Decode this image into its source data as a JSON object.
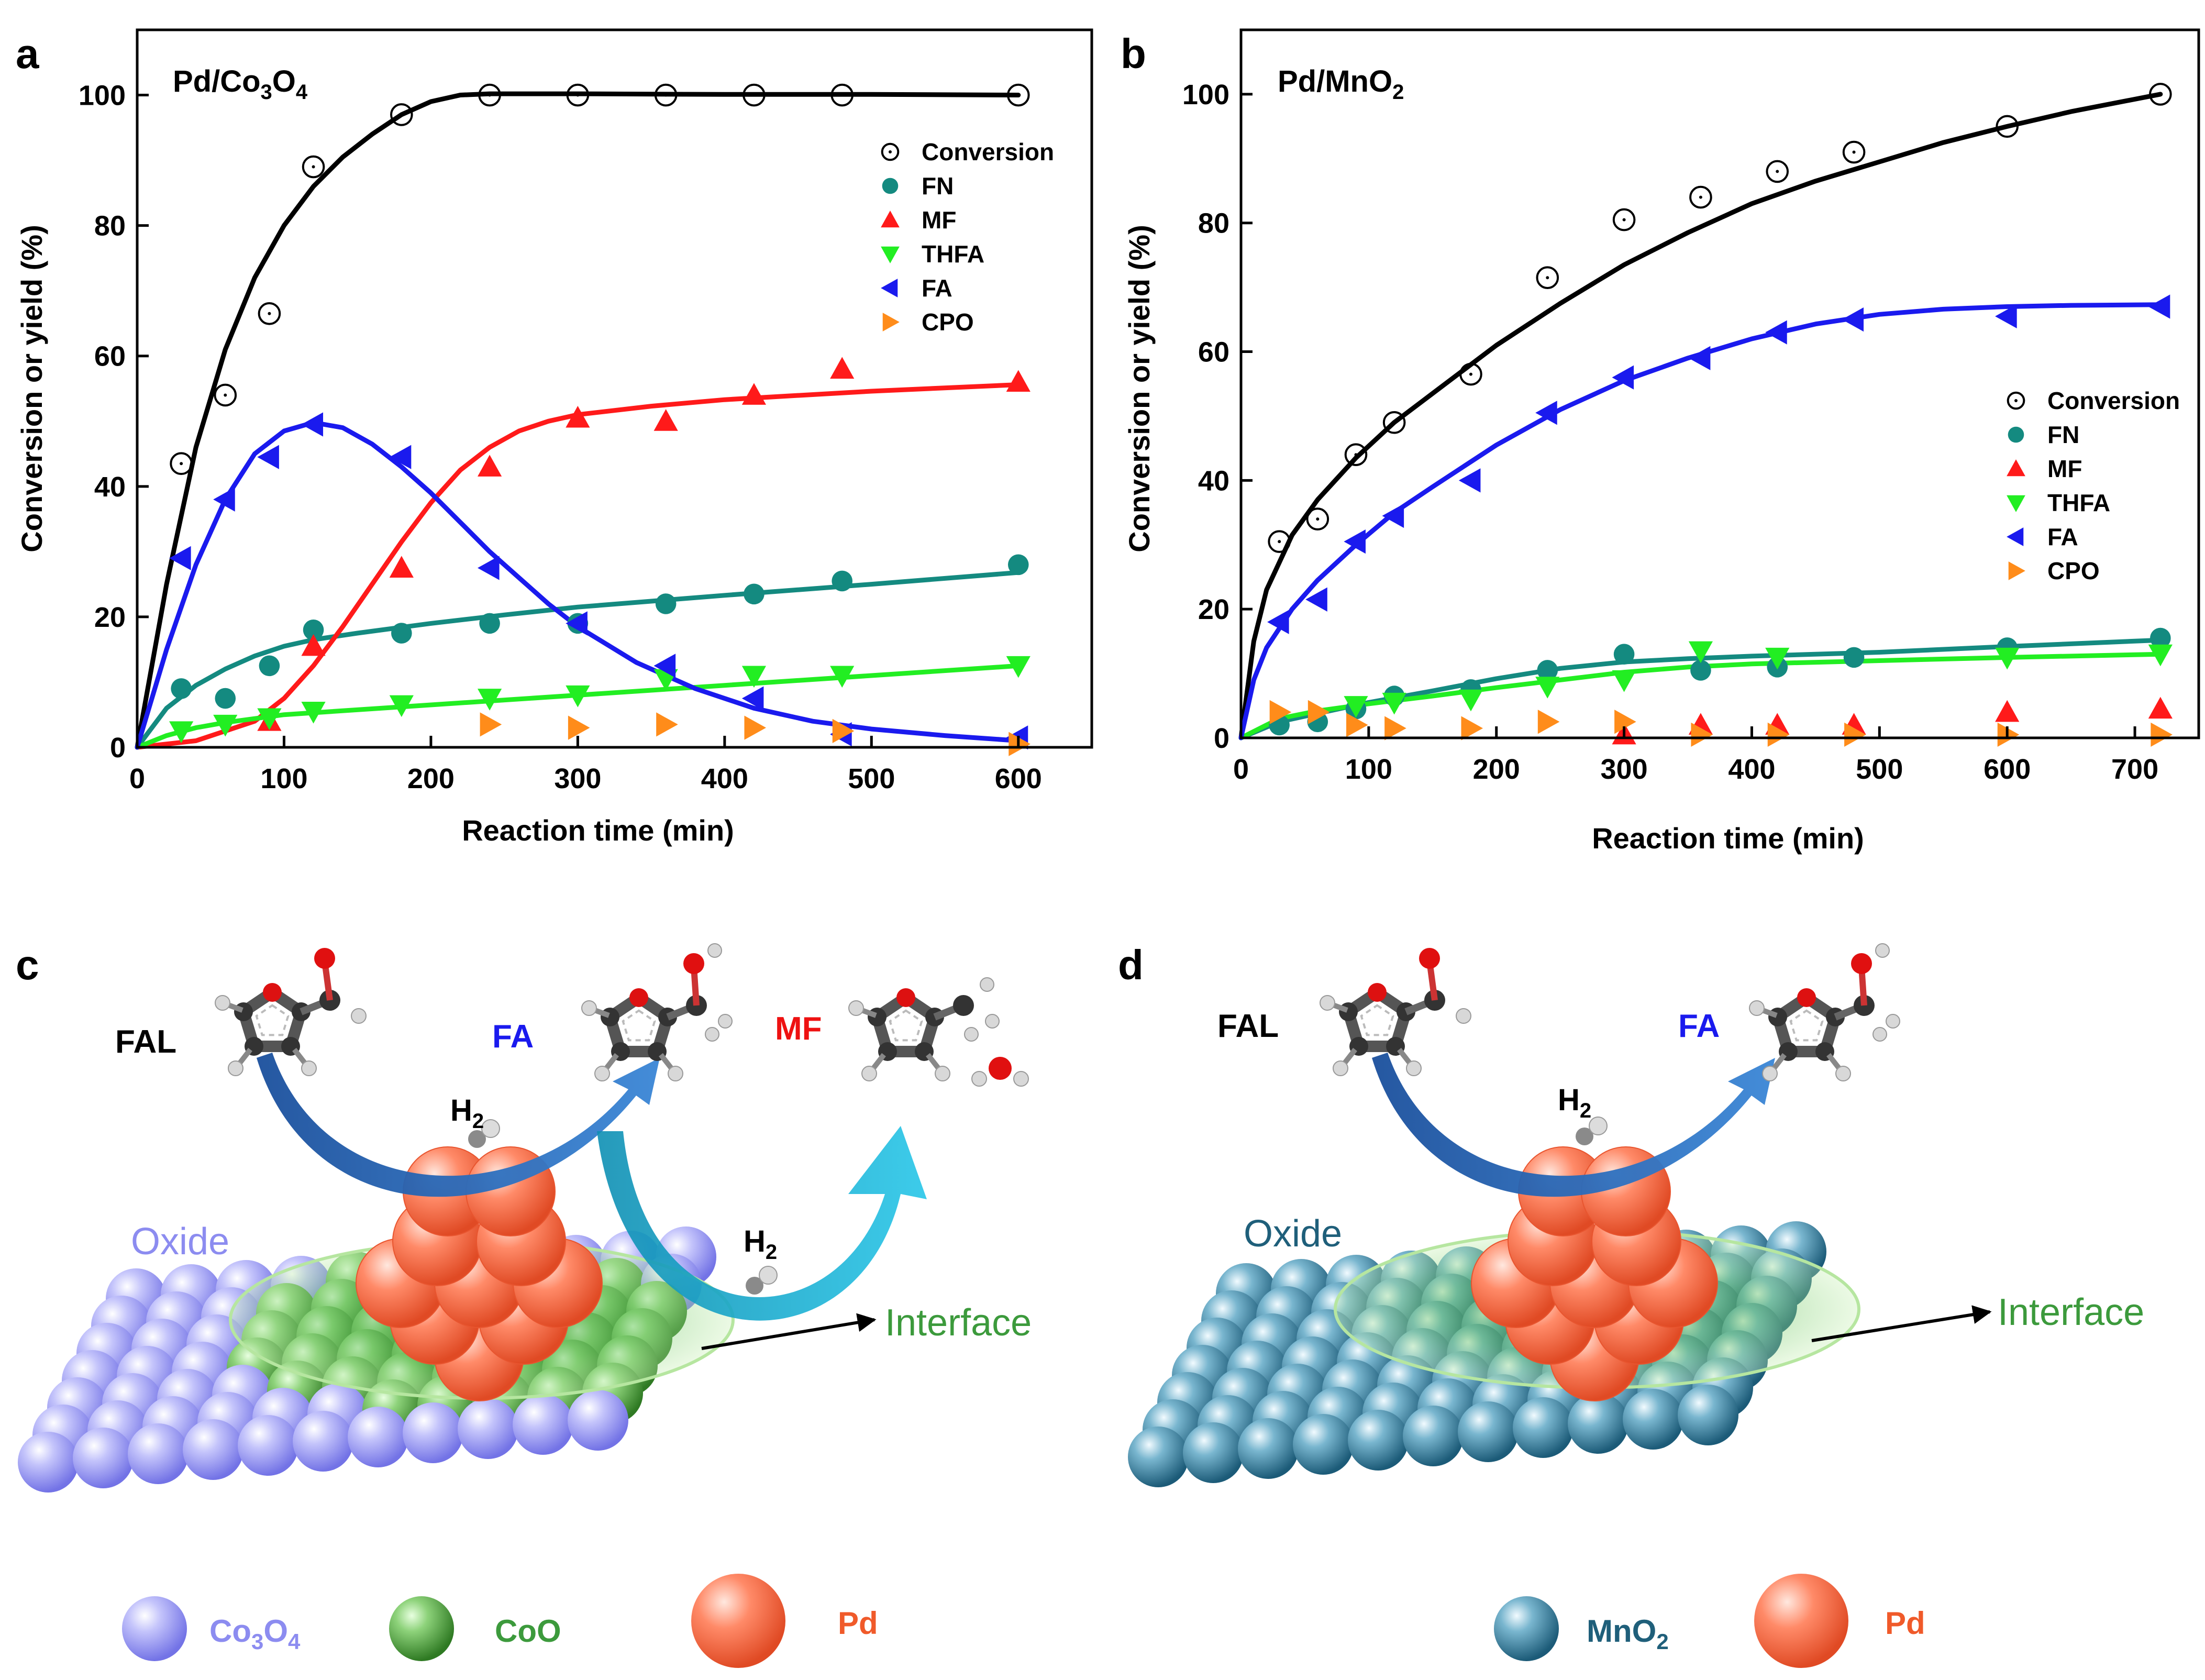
{
  "panels": {
    "a": "a",
    "b": "b",
    "c": "c",
    "d": "d"
  },
  "chart_data": [
    {
      "type": "scatter",
      "id": "a",
      "title": "Pd/Co₃O₄",
      "title_main": "Pd/Co",
      "title_sub1": "3",
      "title_mid": "O",
      "title_sub2": "4",
      "xlabel": "Reaction time (min)",
      "ylabel": "Conversion or yield (%)",
      "xlim": [
        0,
        650
      ],
      "ylim": [
        0,
        110
      ],
      "xticks": [
        0,
        100,
        200,
        300,
        400,
        500,
        600
      ],
      "yticks": [
        0,
        20,
        40,
        60,
        80,
        100
      ],
      "legend_position": "top-right",
      "series": [
        {
          "name": "Conversion",
          "marker": "circle-open",
          "color": "#000000",
          "x": [
            30,
            60,
            90,
            120,
            180,
            240,
            300,
            360,
            420,
            480,
            600
          ],
          "y": [
            43.5,
            54,
            66.5,
            89,
            97,
            100,
            100,
            100,
            100,
            100,
            100
          ],
          "fit_x": [
            0,
            20,
            40,
            60,
            80,
            100,
            120,
            140,
            160,
            180,
            200,
            220,
            240,
            300,
            400,
            500,
            600
          ],
          "fit_y": [
            0,
            25,
            46,
            61,
            72,
            80,
            86,
            90.5,
            94,
            97,
            99,
            100,
            100.2,
            100.2,
            100.1,
            100.1,
            100
          ]
        },
        {
          "name": "FN",
          "marker": "circle-filled",
          "color": "#148a80",
          "x": [
            30,
            60,
            90,
            120,
            180,
            240,
            300,
            360,
            420,
            480,
            600
          ],
          "y": [
            9,
            7.5,
            12.5,
            18,
            17.5,
            19,
            19,
            22,
            23.5,
            25.5,
            28
          ],
          "fit_x": [
            0,
            20,
            40,
            60,
            80,
            100,
            120,
            150,
            200,
            250,
            300,
            400,
            500,
            600
          ],
          "fit_y": [
            0,
            6,
            9.5,
            12,
            14,
            15.5,
            16.5,
            17.5,
            19,
            20.3,
            21.5,
            23.3,
            25,
            26.8
          ]
        },
        {
          "name": "MF",
          "marker": "triangle-up",
          "color": "#ff1a1a",
          "x": [
            90,
            120,
            180,
            240,
            300,
            360,
            420,
            480,
            600
          ],
          "y": [
            4,
            15.5,
            27.5,
            43,
            50.5,
            50,
            54,
            58,
            56
          ],
          "fit_x": [
            0,
            40,
            80,
            100,
            120,
            140,
            160,
            180,
            200,
            220,
            240,
            260,
            280,
            300,
            350,
            400,
            500,
            600
          ],
          "fit_y": [
            0,
            1,
            4,
            7.5,
            12.5,
            18.5,
            25,
            31.5,
            37.5,
            42.5,
            46,
            48.5,
            50,
            51,
            52.3,
            53.3,
            54.6,
            55.6
          ]
        },
        {
          "name": "THFA",
          "marker": "triangle-down",
          "color": "#22ee22",
          "x": [
            30,
            60,
            90,
            120,
            180,
            240,
            300,
            360,
            420,
            480,
            600
          ],
          "y": [
            2.5,
            3.5,
            4.5,
            5.5,
            6.5,
            7.5,
            8,
            10.5,
            11,
            11,
            12.5
          ],
          "fit_x": [
            0,
            20,
            40,
            60,
            100,
            200,
            300,
            400,
            500,
            600
          ],
          "fit_y": [
            0,
            1.8,
            3,
            3.8,
            5,
            6.5,
            8,
            9.5,
            11,
            12.5
          ]
        },
        {
          "name": "FA",
          "marker": "triangle-left",
          "color": "#1a1aee",
          "x": [
            30,
            60,
            90,
            120,
            180,
            240,
            300,
            360,
            420,
            480,
            600
          ],
          "y": [
            29,
            38,
            44.5,
            49.5,
            44.5,
            27.5,
            19,
            12.5,
            7.5,
            2,
            1.5
          ],
          "fit_x": [
            0,
            20,
            40,
            60,
            80,
            100,
            120,
            140,
            160,
            180,
            200,
            220,
            240,
            260,
            280,
            300,
            340,
            380,
            420,
            460,
            500,
            550,
            600
          ],
          "fit_y": [
            0,
            15,
            28,
            38,
            45,
            48.5,
            49.8,
            49,
            46.5,
            43,
            39,
            34.5,
            30,
            26,
            22,
            18.5,
            13,
            9,
            6,
            4,
            2.8,
            1.8,
            1
          ]
        },
        {
          "name": "CPO",
          "marker": "triangle-right",
          "color": "#ff8c1a",
          "x": [
            240,
            300,
            360,
            420,
            480,
            600
          ],
          "y": [
            3.5,
            3,
            3.5,
            3,
            2.5,
            0.5
          ]
        }
      ]
    },
    {
      "type": "scatter",
      "id": "b",
      "title": "Pd/MnO₂",
      "title_main": "Pd/MnO",
      "title_sub1": "2",
      "xlabel": "Reaction time (min)",
      "ylabel": "Conversion or yield (%)",
      "xlim": [
        0,
        750
      ],
      "ylim": [
        0,
        110
      ],
      "xticks": [
        0,
        100,
        200,
        300,
        400,
        500,
        600,
        700
      ],
      "yticks": [
        0,
        20,
        40,
        60,
        80,
        100
      ],
      "legend_position": "right",
      "series": [
        {
          "name": "Conversion",
          "marker": "circle-open",
          "color": "#000000",
          "x": [
            30,
            60,
            90,
            120,
            180,
            240,
            300,
            360,
            420,
            480,
            600,
            720
          ],
          "y": [
            30.5,
            34,
            44,
            49,
            56.5,
            71.5,
            80.5,
            84,
            88,
            91,
            95,
            100
          ],
          "fit_x": [
            0,
            10,
            20,
            40,
            60,
            90,
            120,
            150,
            200,
            250,
            300,
            350,
            400,
            450,
            500,
            550,
            600,
            650,
            720
          ],
          "fit_y": [
            0,
            15,
            23,
            31.5,
            37,
            43.5,
            49,
            53.5,
            61,
            67.5,
            73.5,
            78.5,
            83,
            86.5,
            89.5,
            92.5,
            95,
            97.3,
            100
          ]
        },
        {
          "name": "FN",
          "marker": "circle-filled",
          "color": "#148a80",
          "x": [
            30,
            60,
            90,
            120,
            180,
            240,
            300,
            360,
            420,
            480,
            600,
            720
          ],
          "y": [
            2,
            2.5,
            4.5,
            6.5,
            7.5,
            10.5,
            13,
            10.5,
            11,
            12.5,
            14,
            15.5
          ],
          "fit_x": [
            0,
            30,
            60,
            100,
            150,
            200,
            250,
            300,
            350,
            400,
            500,
            600,
            720
          ],
          "fit_y": [
            0,
            2.5,
            3.8,
            5.5,
            7.3,
            9.2,
            10.8,
            11.8,
            12.3,
            12.7,
            13.3,
            14.2,
            15.2
          ]
        },
        {
          "name": "MF",
          "marker": "triangle-up",
          "color": "#ff1a1a",
          "x": [
            300,
            360,
            420,
            480,
            600,
            720
          ],
          "y": [
            0.5,
            2,
            2,
            2,
            4,
            4.5
          ]
        },
        {
          "name": "THFA",
          "marker": "triangle-down",
          "color": "#22ee22",
          "x": [
            90,
            120,
            180,
            240,
            300,
            360,
            420,
            600,
            720
          ],
          "y": [
            5,
            5.5,
            6,
            8,
            9,
            13.5,
            12.5,
            12.5,
            13
          ],
          "fit_x": [
            0,
            30,
            60,
            100,
            150,
            200,
            250,
            300,
            350,
            400,
            500,
            600,
            720
          ],
          "fit_y": [
            0,
            3,
            4.2,
            5.3,
            6.5,
            7.8,
            9,
            10.2,
            11,
            11.5,
            12,
            12.5,
            13
          ]
        },
        {
          "name": "FA",
          "marker": "triangle-left",
          "color": "#1a1aee",
          "x": [
            30,
            60,
            90,
            120,
            180,
            240,
            300,
            360,
            420,
            480,
            600,
            720
          ],
          "y": [
            18,
            21.5,
            30.5,
            34.5,
            40,
            50.5,
            56,
            59,
            63,
            65,
            65.5,
            67
          ],
          "fit_x": [
            0,
            10,
            20,
            40,
            60,
            90,
            120,
            150,
            200,
            250,
            300,
            350,
            400,
            450,
            500,
            550,
            600,
            650,
            720
          ],
          "fit_y": [
            0,
            9,
            14,
            20,
            24.5,
            30,
            35,
            39,
            45.5,
            51,
            55.5,
            59,
            62,
            64.3,
            65.8,
            66.6,
            67,
            67.2,
            67.3
          ]
        },
        {
          "name": "CPO",
          "marker": "triangle-right",
          "color": "#ff8c1a",
          "x": [
            30,
            60,
            90,
            120,
            180,
            240,
            300,
            360,
            420,
            480,
            600,
            720
          ],
          "y": [
            4,
            4,
            2,
            1.5,
            1.5,
            2.5,
            2.5,
            0.5,
            0.5,
            0.5,
            0.5,
            0.5
          ]
        }
      ]
    }
  ],
  "scheme_c": {
    "molecules": [
      "FAL",
      "FA",
      "MF"
    ],
    "h2_label": "H",
    "h2_sub": "2",
    "oxide_label": "Oxide",
    "interface_label": "Interface",
    "legend": [
      {
        "label_main": "Co",
        "sub1": "3",
        "mid": "O",
        "sub2": "4",
        "color": "#9b9bf5"
      },
      {
        "label_main": "CoO",
        "color": "#4c9a3c"
      },
      {
        "label_main": "Pd",
        "color": "#f36a4b"
      }
    ]
  },
  "scheme_d": {
    "molecules": [
      "FAL",
      "FA"
    ],
    "h2_label": "H",
    "h2_sub": "2",
    "oxide_label": "Oxide",
    "interface_label": "Interface",
    "legend": [
      {
        "label_main": "MnO",
        "sub1": "2",
        "color": "#2a6f8c"
      },
      {
        "label_main": "Pd",
        "color": "#f36a4b"
      }
    ]
  },
  "colors": {
    "co3o4": "#9b9bf5",
    "coo": "#4c9a3c",
    "pd": "#f36a4b",
    "mno2": "#2a6f8c",
    "fal_label": "#000000",
    "fa_label": "#1a1aee",
    "mf_label": "#ee1111",
    "oxide_c": "#8c8cf0",
    "oxide_d": "#1f5f7a",
    "interface": "#3c9a3c",
    "arrow_blue": "#2060b0",
    "arrow_cyan": "#16b3d6"
  }
}
